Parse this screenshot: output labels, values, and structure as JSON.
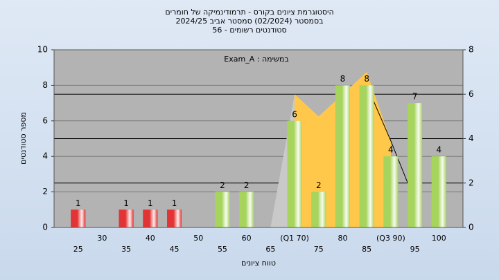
{
  "chart_data": {
    "type": "bar",
    "title_lines": [
      "היסטוגרמת ציונים בקורס - תרמודינמיקה של חומרים",
      "בסמסטר  (02/2024)  סמסטר אביב 2024/25",
      "סטודנטים רשומים - 56"
    ],
    "annotation": "במשימה : Exam_A",
    "xlabel": "טווח ציונים",
    "ylabel": "מספר סטודנטים",
    "categories": [
      "25",
      "30",
      "35",
      "40",
      "45",
      "50",
      "55",
      "60",
      "65",
      "(Q1 70)",
      "75",
      "80",
      "85",
      "(Q3 90)",
      "95",
      "100"
    ],
    "ylim": [
      0,
      10
    ],
    "yticks": [
      0,
      2,
      4,
      6,
      8,
      10
    ],
    "y2lim": [
      0,
      8
    ],
    "y2ticks": [
      0,
      2,
      4,
      6,
      8
    ],
    "grid": true,
    "series": [
      {
        "type": "area",
        "axis": "y2",
        "color": "#c9c9c9",
        "values": [
          null,
          null,
          null,
          null,
          null,
          null,
          null,
          null,
          0,
          6,
          null,
          null,
          null,
          null,
          null,
          null
        ]
      },
      {
        "type": "area",
        "axis": "y2",
        "color": "#ffc84a",
        "values": [
          null,
          null,
          null,
          null,
          null,
          null,
          null,
          null,
          null,
          6,
          5,
          6,
          7,
          3.9,
          null,
          null
        ]
      },
      {
        "type": "line",
        "axis": "y2",
        "color": "#000000",
        "values": [
          null,
          null,
          null,
          null,
          null,
          null,
          null,
          null,
          null,
          null,
          null,
          null,
          6.4,
          3.9,
          1.2,
          null
        ]
      },
      {
        "type": "bar",
        "values": [
          1,
          0,
          1,
          1,
          1,
          0,
          2,
          2,
          0,
          6,
          2,
          8,
          8,
          4,
          7,
          4
        ],
        "colors": [
          "#e23434",
          "#e23434",
          "#e23434",
          "#e23434",
          "#e23434",
          "#e23434",
          "#a6d45c",
          "#a6d45c",
          "#a6d45c",
          "#a6d45c",
          "#a6d45c",
          "#a6d45c",
          "#a6d45c",
          "#a6d45c",
          "#a6d45c",
          "#a6d45c"
        ]
      }
    ]
  }
}
